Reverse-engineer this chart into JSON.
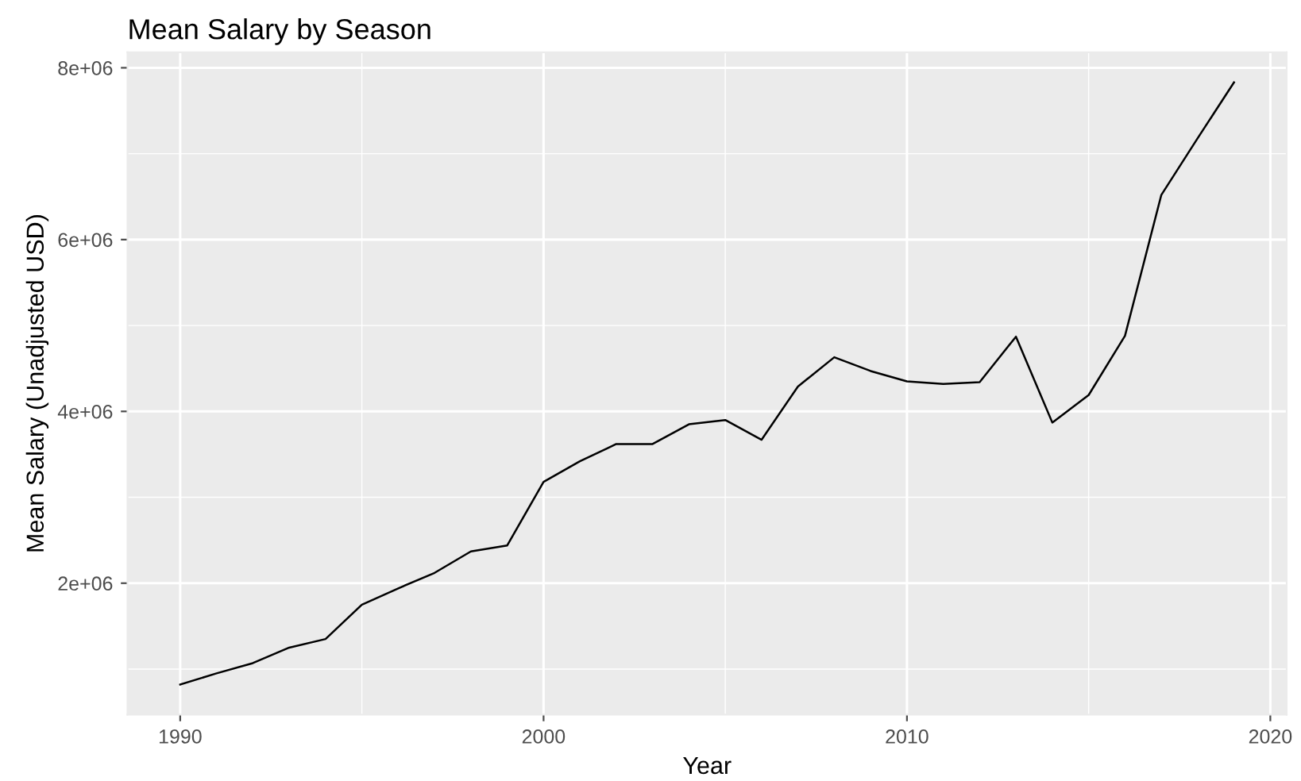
{
  "chart_data": {
    "type": "line",
    "title": "Mean Salary by Season",
    "xlabel": "Year",
    "ylabel": "Mean Salary (Unadjusted USD)",
    "x": [
      1990,
      1991,
      1992,
      1993,
      1994,
      1995,
      1996,
      1997,
      1998,
      1999,
      2000,
      2001,
      2002,
      2003,
      2004,
      2005,
      2006,
      2007,
      2008,
      2009,
      2010,
      2011,
      2012,
      2013,
      2014,
      2015,
      2016,
      2017,
      2018,
      2019
    ],
    "series": [
      {
        "color": "#000000",
        "values": [
          820000,
          950000,
          1070000,
          1250000,
          1350000,
          1750000,
          1940000,
          2120000,
          2370000,
          2440000,
          3180000,
          3420000,
          3620000,
          3620000,
          3850000,
          3900000,
          3670000,
          4290000,
          4630000,
          4470000,
          4350000,
          4320000,
          4340000,
          4870000,
          3870000,
          4190000,
          4880000,
          6520000,
          7180000,
          7830000
        ]
      }
    ],
    "xlim": [
      1988.55,
      2020.45
    ],
    "ylim": [
      470000,
      8180000
    ],
    "xticks": [
      1990,
      2000,
      2010,
      2020
    ],
    "yticks": [
      {
        "value": 2000000,
        "label": "2e+06"
      },
      {
        "value": 4000000,
        "label": "4e+06"
      },
      {
        "value": 6000000,
        "label": "6e+06"
      },
      {
        "value": 8000000,
        "label": "8e+06"
      }
    ],
    "grid": true,
    "legend": false,
    "line_style": "solid",
    "marker": "none"
  }
}
